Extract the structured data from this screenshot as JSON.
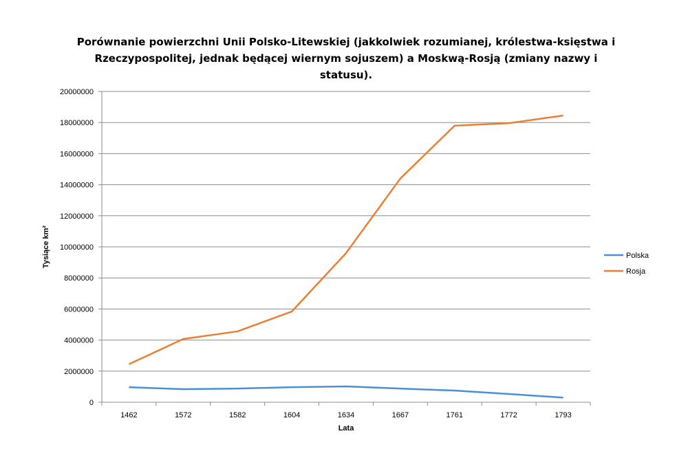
{
  "chart_data": {
    "type": "line",
    "title_lines": [
      "Porównanie powierzchni Unii Polsko-Litewskiej (jakkolwiek rozumianej, królestwa-księstwa i",
      "Rzeczypospolitej, jednak będącej wiernym sojuszem) a Moskwą-Rosją (zmiany nazwy i",
      "statusu)."
    ],
    "xlabel": "Lata",
    "ylabel": "Tysiące  km²",
    "categories": [
      "1462",
      "1572",
      "1582",
      "1604",
      "1634",
      "1667",
      "1761",
      "1772",
      "1793"
    ],
    "ylim": [
      0,
      20000000
    ],
    "yticks": [
      "0",
      "2000000",
      "4000000",
      "6000000",
      "8000000",
      "10000000",
      "12000000",
      "14000000",
      "16000000",
      "18000000",
      "20000000"
    ],
    "grid": true,
    "legend_position": "right",
    "series": [
      {
        "name": "Polska",
        "color": "#4a8fd6",
        "values": [
          970000,
          840000,
          880000,
          970000,
          1020000,
          880000,
          750000,
          530000,
          300000
        ]
      },
      {
        "name": "Rosja",
        "color": "#ee7d31",
        "values": [
          2450000,
          4070000,
          4560000,
          5840000,
          9600000,
          14400000,
          17800000,
          17960000,
          18450000
        ]
      }
    ]
  }
}
